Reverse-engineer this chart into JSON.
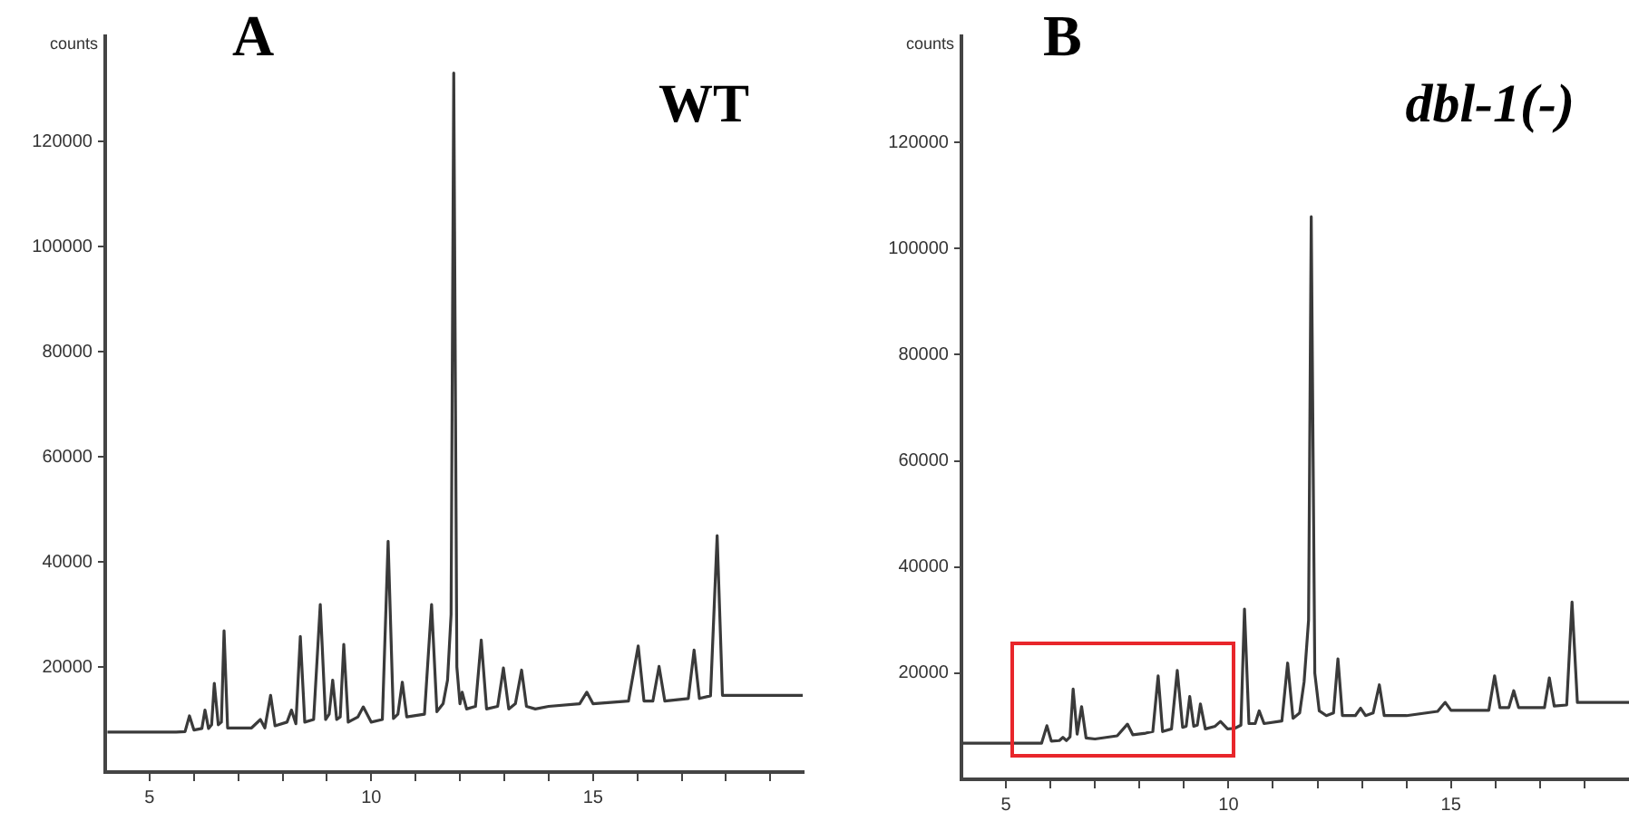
{
  "chart_data": [
    {
      "type": "line",
      "title": "A",
      "ylabel": "counts",
      "annotations": [
        "WT"
      ],
      "xlim": [
        4,
        19.75
      ],
      "ylim": [
        0,
        140000
      ],
      "xticks": [
        5,
        {
          "value": 6,
          "label": null
        },
        {
          "value": 7,
          "label": null
        },
        {
          "value": 8,
          "label": null
        },
        {
          "value": 9,
          "label": null
        },
        10,
        {
          "value": 11,
          "label": null
        },
        {
          "value": 12,
          "label": null
        },
        {
          "value": 13,
          "label": null
        },
        {
          "value": 14,
          "label": null
        },
        15,
        {
          "value": 16,
          "label": null
        },
        {
          "value": 17,
          "label": null
        },
        {
          "value": 18,
          "label": null
        },
        {
          "value": 19,
          "label": null
        }
      ],
      "yticks": [
        20000,
        40000,
        60000,
        80000,
        100000,
        120000
      ],
      "grid": false,
      "legend": false,
      "marker": "none",
      "line_style": "solid",
      "series": [
        {
          "color": "#3a3a3a",
          "x": [
            4.05,
            5.6,
            5.8,
            5.9,
            6.0,
            6.18,
            6.25,
            6.33,
            6.4,
            6.46,
            6.55,
            6.62,
            6.68,
            6.76,
            7.3,
            7.5,
            7.6,
            7.73,
            7.83,
            8.1,
            8.2,
            8.3,
            8.4,
            8.5,
            8.7,
            8.85,
            8.97,
            9.05,
            9.13,
            9.22,
            9.3,
            9.38,
            9.48,
            9.7,
            9.82,
            10.0,
            10.25,
            10.38,
            10.5,
            10.6,
            10.7,
            10.8,
            11.2,
            11.36,
            11.48,
            11.62,
            11.72,
            11.8,
            11.86,
            11.93,
            12.0,
            12.05,
            12.15,
            12.35,
            12.48,
            12.6,
            12.85,
            12.98,
            13.1,
            13.25,
            13.39,
            13.5,
            13.7,
            14.0,
            14.7,
            14.86,
            15.0,
            15.8,
            16.02,
            16.15,
            16.35,
            16.49,
            16.62,
            17.15,
            17.28,
            17.4,
            17.65,
            17.8,
            17.92,
            19.73
          ],
          "values": [
            7600,
            7600,
            7700,
            10700,
            8000,
            8300,
            11800,
            8300,
            9000,
            16900,
            9000,
            9500,
            26900,
            8400,
            8400,
            10000,
            8400,
            14600,
            8800,
            9500,
            11800,
            9200,
            25800,
            9500,
            10000,
            31900,
            10000,
            11000,
            17500,
            10000,
            10500,
            24300,
            9500,
            10500,
            12400,
            9500,
            10000,
            43900,
            10200,
            11000,
            17100,
            10500,
            11000,
            31900,
            11500,
            13000,
            17500,
            30000,
            133000,
            20000,
            13000,
            15200,
            12000,
            12500,
            25100,
            12000,
            12500,
            19800,
            12000,
            13000,
            19400,
            12500,
            12000,
            12500,
            13000,
            15200,
            13000,
            13500,
            24000,
            13500,
            13500,
            20100,
            13500,
            14000,
            23200,
            14000,
            14500,
            45000,
            14600,
            14600
          ]
        }
      ]
    },
    {
      "type": "line",
      "title": "B",
      "ylabel": "counts",
      "annotations": [
        "dbl-1(-)"
      ],
      "xlim": [
        4,
        19
      ],
      "ylim": [
        0,
        140000
      ],
      "xticks": [
        5,
        {
          "value": 6,
          "label": null
        },
        {
          "value": 7,
          "label": null
        },
        {
          "value": 8,
          "label": null
        },
        {
          "value": 9,
          "label": null
        },
        10,
        {
          "value": 11,
          "label": null
        },
        {
          "value": 12,
          "label": null
        },
        {
          "value": 13,
          "label": null
        },
        {
          "value": 14,
          "label": null
        },
        15,
        {
          "value": 16,
          "label": null
        },
        {
          "value": 17,
          "label": null
        },
        {
          "value": 18,
          "label": null
        }
      ],
      "yticks": [
        20000,
        40000,
        60000,
        80000,
        100000,
        120000
      ],
      "grid": false,
      "legend": false,
      "marker": "none",
      "line_style": "solid",
      "series": [
        {
          "color": "#3a3a3a",
          "x": [
            4.03,
            5.8,
            5.92,
            6.02,
            6.2,
            6.28,
            6.36,
            6.44,
            6.51,
            6.6,
            6.7,
            6.8,
            7.0,
            7.5,
            7.73,
            7.85,
            8.14,
            8.3,
            8.42,
            8.52,
            8.72,
            8.85,
            8.97,
            9.05,
            9.13,
            9.22,
            9.3,
            9.37,
            9.48,
            9.7,
            9.82,
            9.98,
            10.14,
            10.28,
            10.36,
            10.46,
            10.6,
            10.69,
            10.8,
            11.2,
            11.33,
            11.45,
            11.6,
            11.7,
            11.8,
            11.86,
            11.94,
            12.04,
            12.2,
            12.36,
            12.46,
            12.56,
            12.85,
            12.97,
            13.08,
            13.25,
            13.39,
            13.5,
            14.0,
            14.7,
            14.87,
            15.0,
            15.85,
            15.98,
            16.1,
            16.3,
            16.41,
            16.52,
            17.1,
            17.21,
            17.32,
            17.6,
            17.72,
            17.84,
            19.0
          ],
          "values": [
            6800,
            6800,
            10100,
            7200,
            7300,
            7900,
            7300,
            8000,
            17000,
            8500,
            13700,
            7800,
            7600,
            8200,
            10400,
            8400,
            8700,
            9000,
            19500,
            9000,
            9500,
            20500,
            9800,
            10000,
            15600,
            10000,
            10200,
            14200,
            9500,
            10000,
            10900,
            9500,
            9600,
            10200,
            32100,
            10500,
            10500,
            12900,
            10500,
            11000,
            21900,
            11500,
            12500,
            18400,
            30000,
            106000,
            20000,
            12900,
            12000,
            12500,
            22700,
            12000,
            12000,
            13400,
            12000,
            12500,
            17800,
            12000,
            12000,
            12800,
            14500,
            13000,
            13000,
            19500,
            13500,
            13500,
            16700,
            13500,
            13500,
            19100,
            13800,
            14000,
            33400,
            14500,
            14500
          ]
        }
      ]
    }
  ]
}
